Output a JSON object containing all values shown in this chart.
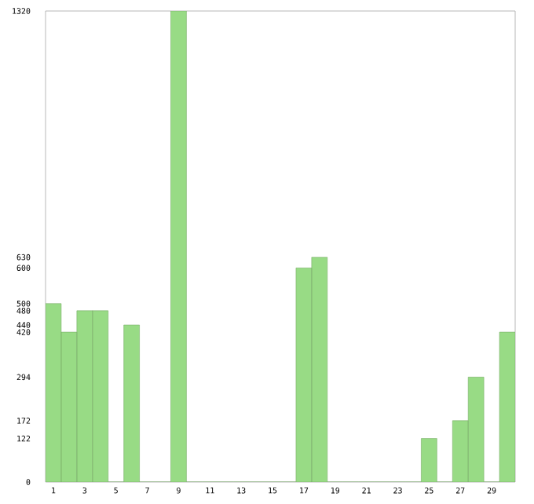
{
  "chart_data": {
    "type": "bar",
    "categories": [
      "1",
      null,
      "3",
      null,
      "5",
      null,
      "7",
      null,
      "9",
      null,
      "11",
      null,
      "13",
      null,
      "15",
      null,
      "17",
      null,
      "19",
      null,
      "21",
      null,
      "23",
      null,
      "25",
      null,
      "27",
      null,
      "29",
      null
    ],
    "values": [
      500,
      420,
      480,
      480,
      0,
      440,
      0,
      0,
      1320,
      0,
      0,
      0,
      0,
      0,
      0,
      0,
      600,
      630,
      0,
      0,
      0,
      0,
      0,
      0,
      122,
      0,
      172,
      294,
      0,
      420
    ],
    "color": "#98db85",
    "ylim": [
      0,
      1320
    ],
    "yticks": [
      0,
      122,
      172,
      294,
      420,
      440,
      480,
      500,
      600,
      630,
      1320
    ],
    "grid": false
  }
}
